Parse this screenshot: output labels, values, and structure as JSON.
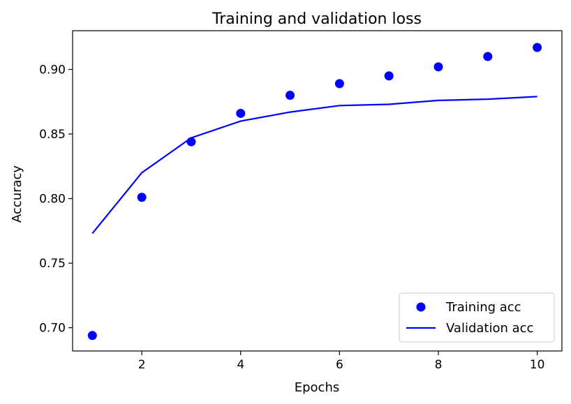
{
  "chart_data": {
    "type": "line",
    "title": "Training and validation loss",
    "xlabel": "Epochs",
    "ylabel": "Accuracy",
    "xlim": [
      0.6,
      10.5
    ],
    "ylim": [
      0.682,
      0.93
    ],
    "xticks": [
      2,
      4,
      6,
      8,
      10
    ],
    "yticks": [
      0.7,
      0.75,
      0.8,
      0.85,
      0.9
    ],
    "xtick_labels": [
      "2",
      "4",
      "6",
      "8",
      "10"
    ],
    "ytick_labels": [
      "0.70",
      "0.75",
      "0.80",
      "0.85",
      "0.90"
    ],
    "grid": false,
    "legend_position": "bottom-right",
    "x": [
      1,
      2,
      3,
      4,
      5,
      6,
      7,
      8,
      9,
      10
    ],
    "series": [
      {
        "name": "Training acc",
        "style": "points",
        "color": "#0000ff",
        "values": [
          0.694,
          0.801,
          0.844,
          0.866,
          0.88,
          0.889,
          0.895,
          0.902,
          0.91,
          0.917
        ]
      },
      {
        "name": "Validation acc",
        "style": "line",
        "color": "#0000ff",
        "values": [
          0.773,
          0.82,
          0.847,
          0.86,
          0.867,
          0.872,
          0.873,
          0.876,
          0.877,
          0.879
        ]
      }
    ]
  }
}
